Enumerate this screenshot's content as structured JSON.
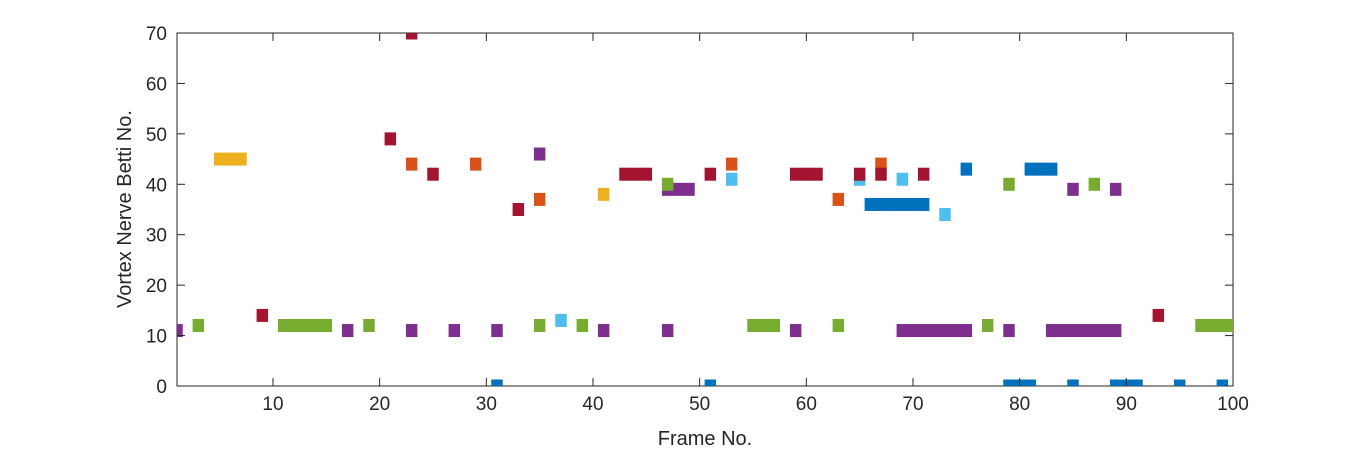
{
  "chart_data": {
    "type": "scatter",
    "title": "",
    "xlabel": "Frame No.",
    "ylabel": "Vortex Nerve Betti No.",
    "xlim": [
      1,
      100
    ],
    "ylim": [
      0,
      70
    ],
    "xticks": [
      10,
      20,
      30,
      40,
      50,
      60,
      70,
      80,
      90,
      100
    ],
    "yticks": [
      0,
      10,
      20,
      30,
      40,
      50,
      60,
      70
    ],
    "grid": false,
    "legend": "none",
    "marker": "square",
    "colors": {
      "blue": "#0072BD",
      "orange": "#D95319",
      "yellow": "#EDB120",
      "purple": "#7E2F8E",
      "green": "#77AC30",
      "cyan": "#4DBEEE",
      "red": "#A2142F"
    },
    "series": [
      {
        "color": "blue",
        "points": [
          [
            31,
            0
          ],
          [
            51,
            0
          ],
          [
            66,
            36
          ],
          [
            67,
            36
          ],
          [
            68,
            36
          ],
          [
            69,
            36
          ],
          [
            70,
            36
          ],
          [
            71,
            36
          ],
          [
            75,
            43
          ],
          [
            79,
            0
          ],
          [
            80,
            0
          ],
          [
            81,
            0
          ],
          [
            81,
            43
          ],
          [
            82,
            43
          ],
          [
            83,
            43
          ],
          [
            85,
            0
          ],
          [
            89,
            0
          ],
          [
            90,
            0
          ],
          [
            91,
            0
          ],
          [
            95,
            0
          ],
          [
            99,
            0
          ]
        ]
      },
      {
        "color": "orange",
        "points": [
          [
            23,
            44
          ],
          [
            29,
            44
          ],
          [
            35,
            37
          ],
          [
            53,
            44
          ],
          [
            63,
            37
          ],
          [
            67,
            44
          ]
        ]
      },
      {
        "color": "yellow",
        "points": [
          [
            5,
            45
          ],
          [
            6,
            45
          ],
          [
            7,
            45
          ],
          [
            41,
            38
          ]
        ]
      },
      {
        "color": "purple",
        "points": [
          [
            1,
            11
          ],
          [
            17,
            11
          ],
          [
            23,
            11
          ],
          [
            27,
            11
          ],
          [
            31,
            11
          ],
          [
            35,
            46
          ],
          [
            41,
            11
          ],
          [
            47,
            11
          ],
          [
            47,
            39
          ],
          [
            48,
            39
          ],
          [
            49,
            39
          ],
          [
            59,
            11
          ],
          [
            69,
            11
          ],
          [
            70,
            11
          ],
          [
            71,
            11
          ],
          [
            72,
            11
          ],
          [
            73,
            11
          ],
          [
            74,
            11
          ],
          [
            75,
            11
          ],
          [
            79,
            11
          ],
          [
            83,
            11
          ],
          [
            84,
            11
          ],
          [
            85,
            11
          ],
          [
            85,
            39
          ],
          [
            86,
            11
          ],
          [
            87,
            11
          ],
          [
            88,
            11
          ],
          [
            89,
            11
          ],
          [
            89,
            39
          ]
        ]
      },
      {
        "color": "green",
        "points": [
          [
            3,
            12
          ],
          [
            11,
            12
          ],
          [
            12,
            12
          ],
          [
            13,
            12
          ],
          [
            14,
            12
          ],
          [
            15,
            12
          ],
          [
            19,
            12
          ],
          [
            35,
            12
          ],
          [
            39,
            12
          ],
          [
            47,
            40
          ],
          [
            55,
            12
          ],
          [
            56,
            12
          ],
          [
            57,
            12
          ],
          [
            63,
            12
          ],
          [
            77,
            12
          ],
          [
            79,
            40
          ],
          [
            87,
            40
          ],
          [
            97,
            12
          ],
          [
            98,
            12
          ],
          [
            99,
            12
          ],
          [
            100,
            12
          ]
        ]
      },
      {
        "color": "cyan",
        "points": [
          [
            37,
            13
          ],
          [
            53,
            41
          ],
          [
            65,
            41
          ],
          [
            69,
            41
          ],
          [
            73,
            34
          ]
        ]
      },
      {
        "color": "red",
        "points": [
          [
            9,
            14
          ],
          [
            21,
            49
          ],
          [
            23,
            70
          ],
          [
            25,
            42
          ],
          [
            33,
            35
          ],
          [
            43,
            42
          ],
          [
            44,
            42
          ],
          [
            45,
            42
          ],
          [
            51,
            42
          ],
          [
            59,
            42
          ],
          [
            60,
            42
          ],
          [
            61,
            42
          ],
          [
            65,
            42
          ],
          [
            67,
            42
          ],
          [
            71,
            42
          ],
          [
            93,
            14
          ]
        ]
      }
    ]
  }
}
